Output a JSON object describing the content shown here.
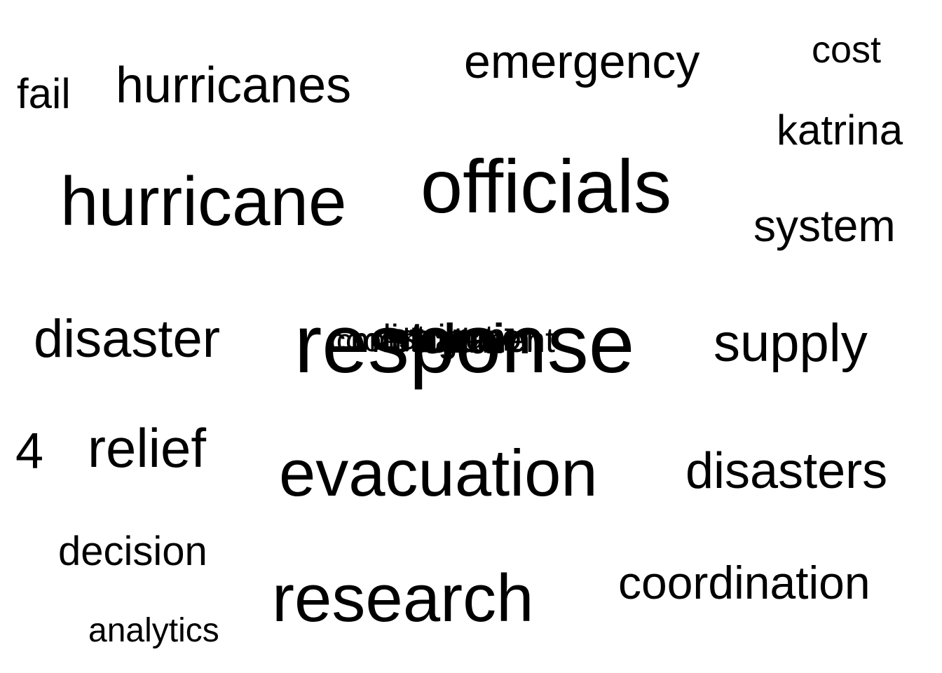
{
  "words": {
    "cost": "cost",
    "emergency": "emergency",
    "fail": "fail",
    "hurricanes": "hurricanes",
    "katrina": "katrina",
    "hurricane": "hurricane",
    "officials": "officials",
    "system": "system",
    "disaster": "disaster",
    "response": "response",
    "supply": "supply",
    "four": "4",
    "relief": "relief",
    "evacuation": "evacuation",
    "disasters": "disasters",
    "decision": "decision",
    "research": "research",
    "coordination": "coordination",
    "analytics": "analytics"
  },
  "overlapping_words": [
    "coordination",
    "distribution",
    "storm",
    "chain",
    "management",
    "communication"
  ]
}
